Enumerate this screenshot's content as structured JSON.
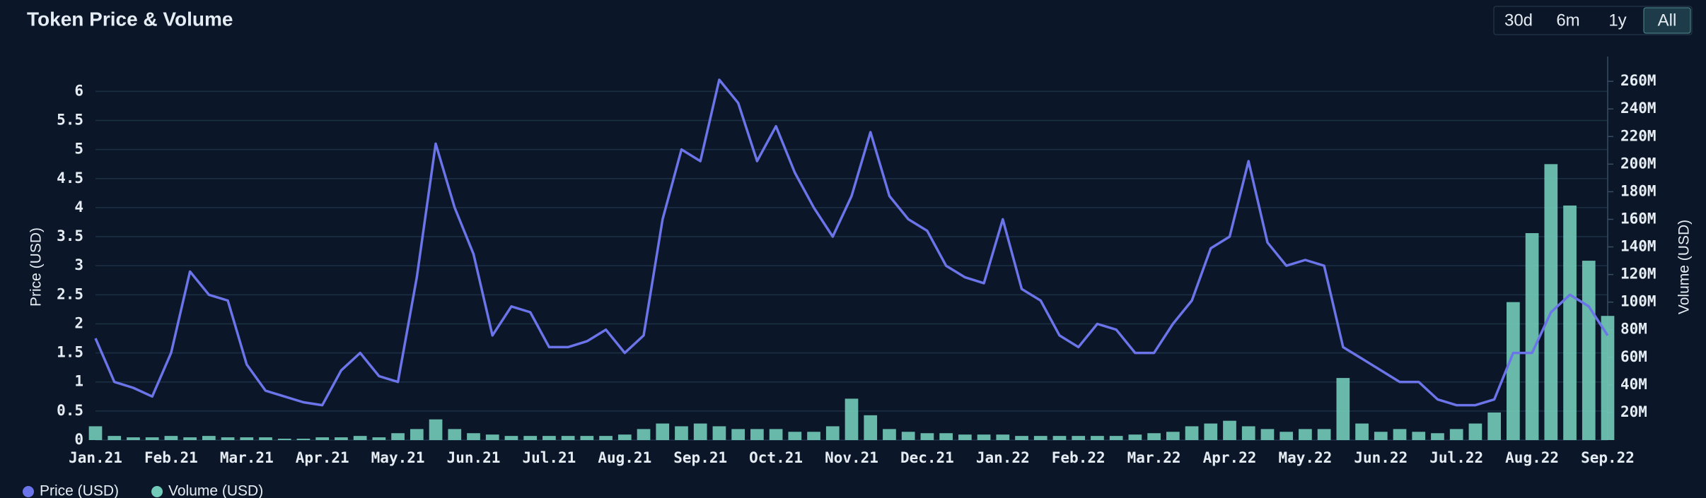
{
  "chart_data": {
    "type": "line",
    "title": "Token Price & Volume",
    "range_buttons": [
      "30d",
      "6m",
      "1y",
      "All"
    ],
    "active_range": "All",
    "ylabel": "Price (USD)",
    "y2label": "Volume (USD)",
    "grid": true,
    "legend": "bottom",
    "categories": [
      "Jan.21",
      null,
      null,
      null,
      "Feb.21",
      null,
      null,
      null,
      "Mar.21",
      null,
      null,
      null,
      "Apr.21",
      null,
      null,
      null,
      "May.21",
      null,
      null,
      null,
      "Jun.21",
      null,
      null,
      null,
      "Jul.21",
      null,
      null,
      null,
      "Aug.21",
      null,
      null,
      null,
      "Sep.21",
      null,
      null,
      null,
      "Oct.21",
      null,
      null,
      null,
      "Nov.21",
      null,
      null,
      null,
      "Dec.21",
      null,
      null,
      null,
      "Jan.22",
      null,
      null,
      null,
      "Feb.22",
      null,
      null,
      null,
      "Mar.22",
      null,
      null,
      null,
      "Apr.22",
      null,
      null,
      null,
      "May.22",
      null,
      null,
      null,
      "Jun.22",
      null,
      null,
      null,
      "Jul.22",
      null,
      null,
      null,
      "Aug.22",
      null,
      null,
      null,
      "Sep.22"
    ],
    "series": [
      {
        "name": "Price (USD)",
        "type": "line",
        "color": "#6b74e8",
        "values": [
          1.75,
          1.0,
          0.9,
          0.75,
          1.5,
          2.9,
          2.5,
          2.4,
          1.3,
          0.85,
          0.75,
          0.65,
          0.6,
          1.2,
          1.5,
          1.1,
          1.0,
          2.8,
          5.1,
          4.0,
          3.2,
          1.8,
          2.3,
          2.2,
          1.6,
          1.6,
          1.7,
          1.9,
          1.5,
          1.8,
          3.8,
          5.0,
          4.8,
          6.2,
          5.8,
          4.8,
          5.4,
          4.6,
          4.0,
          3.5,
          4.2,
          5.3,
          4.2,
          3.8,
          3.6,
          3.0,
          2.8,
          2.7,
          3.8,
          2.6,
          2.4,
          1.8,
          1.6,
          2.0,
          1.9,
          1.5,
          1.5,
          2.0,
          2.4,
          3.3,
          3.5,
          4.8,
          3.4,
          3.0,
          3.1,
          3.0,
          1.6,
          1.4,
          1.2,
          1.0,
          1.0,
          0.7,
          0.6,
          0.6,
          0.7,
          1.5,
          1.5,
          2.2,
          2.5,
          2.3,
          1.8
        ]
      },
      {
        "name": "Volume (USD)",
        "type": "bar",
        "axis": "y2",
        "color": "#72cbb8",
        "values": [
          10000000,
          3000000,
          2000000,
          2000000,
          3000000,
          2000000,
          3000000,
          2000000,
          2000000,
          2000000,
          1000000,
          1000000,
          2000000,
          2000000,
          3000000,
          2000000,
          5000000,
          8000000,
          15000000,
          8000000,
          5000000,
          4000000,
          3000000,
          3000000,
          3000000,
          3000000,
          3000000,
          3000000,
          4000000,
          8000000,
          12000000,
          10000000,
          12000000,
          10000000,
          8000000,
          8000000,
          8000000,
          6000000,
          6000000,
          10000000,
          30000000,
          18000000,
          8000000,
          6000000,
          5000000,
          5000000,
          4000000,
          4000000,
          4000000,
          3000000,
          3000000,
          3000000,
          3000000,
          3000000,
          3000000,
          4000000,
          5000000,
          6000000,
          10000000,
          12000000,
          14000000,
          10000000,
          8000000,
          6000000,
          8000000,
          8000000,
          45000000,
          12000000,
          6000000,
          8000000,
          6000000,
          5000000,
          8000000,
          12000000,
          20000000,
          100000000,
          150000000,
          200000000,
          170000000,
          130000000,
          90000000
        ]
      }
    ],
    "ylim": [
      0,
      6.6
    ],
    "yticks": [
      0,
      0.5,
      1,
      1.5,
      2,
      2.5,
      3,
      3.5,
      4,
      4.5,
      5,
      5.5,
      6
    ],
    "y2lim": [
      0,
      278000000
    ],
    "y2ticks": [
      {
        "value": 20000000,
        "label": "20M"
      },
      {
        "value": 40000000,
        "label": "40M"
      },
      {
        "value": 60000000,
        "label": "60M"
      },
      {
        "value": 80000000,
        "label": "80M"
      },
      {
        "value": 100000000,
        "label": "100M"
      },
      {
        "value": 120000000,
        "label": "120M"
      },
      {
        "value": 140000000,
        "label": "140M"
      },
      {
        "value": 160000000,
        "label": "160M"
      },
      {
        "value": 180000000,
        "label": "180M"
      },
      {
        "value": 200000000,
        "label": "200M"
      },
      {
        "value": 220000000,
        "label": "220M"
      },
      {
        "value": 240000000,
        "label": "240M"
      },
      {
        "value": 260000000,
        "label": "260M"
      }
    ]
  }
}
